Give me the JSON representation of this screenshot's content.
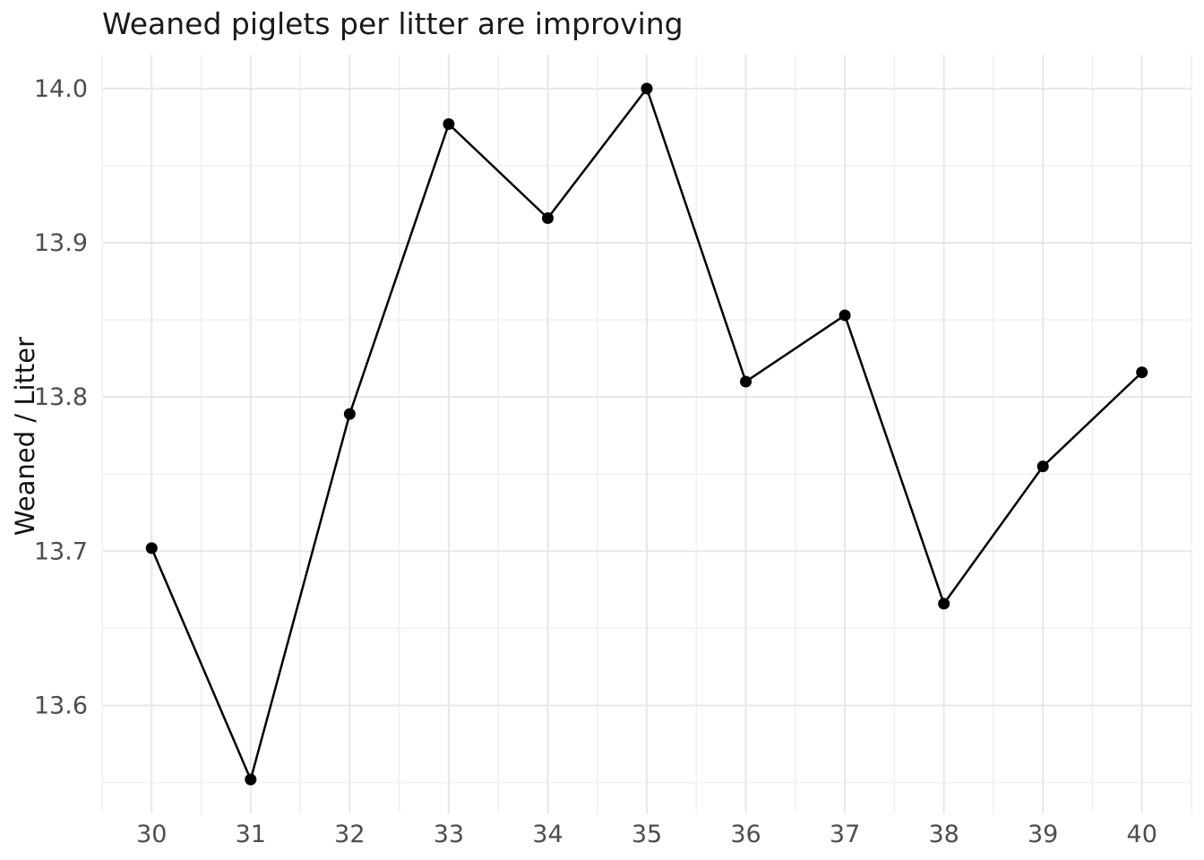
{
  "figure": {
    "background": "#ffffff"
  },
  "chart_data": {
    "type": "line",
    "title": "Weaned piglets per litter are improving",
    "xlabel": "",
    "ylabel": "Weaned / Litter",
    "x": [
      30,
      31,
      32,
      33,
      34,
      35,
      36,
      37,
      38,
      39,
      40
    ],
    "values": [
      13.702,
      13.552,
      13.789,
      13.977,
      13.916,
      14.0,
      13.81,
      13.853,
      13.666,
      13.755,
      13.816
    ],
    "x_ticks": [
      30,
      31,
      32,
      33,
      34,
      35,
      36,
      37,
      38,
      39,
      40
    ],
    "x_tick_labels": [
      "30",
      "31",
      "32",
      "33",
      "34",
      "35",
      "36",
      "37",
      "38",
      "39",
      "40"
    ],
    "x_minor_ticks": [
      29.5,
      30.5,
      31.5,
      32.5,
      33.5,
      34.5,
      35.5,
      36.5,
      37.5,
      38.5,
      39.5,
      40.5
    ],
    "y_ticks": [
      13.6,
      13.7,
      13.8,
      13.9,
      14.0
    ],
    "y_tick_labels": [
      "13.6",
      "13.7",
      "13.8",
      "13.9",
      "14.0"
    ],
    "y_minor_ticks": [
      13.55,
      13.65,
      13.75,
      13.85,
      13.95
    ],
    "xlim": [
      29.5,
      40.5
    ],
    "ylim": [
      13.53,
      14.022
    ],
    "grid": "on",
    "legend": "none",
    "line_color": "#000000",
    "marker": "circle",
    "marker_color": "#000000",
    "grid_major_color": "#e7e7e7",
    "grid_minor_color": "#f0f0f0",
    "tick_label_color": "#4d4d4d",
    "title_color": "#1a1a1a",
    "axis_title_color": "#111111"
  }
}
